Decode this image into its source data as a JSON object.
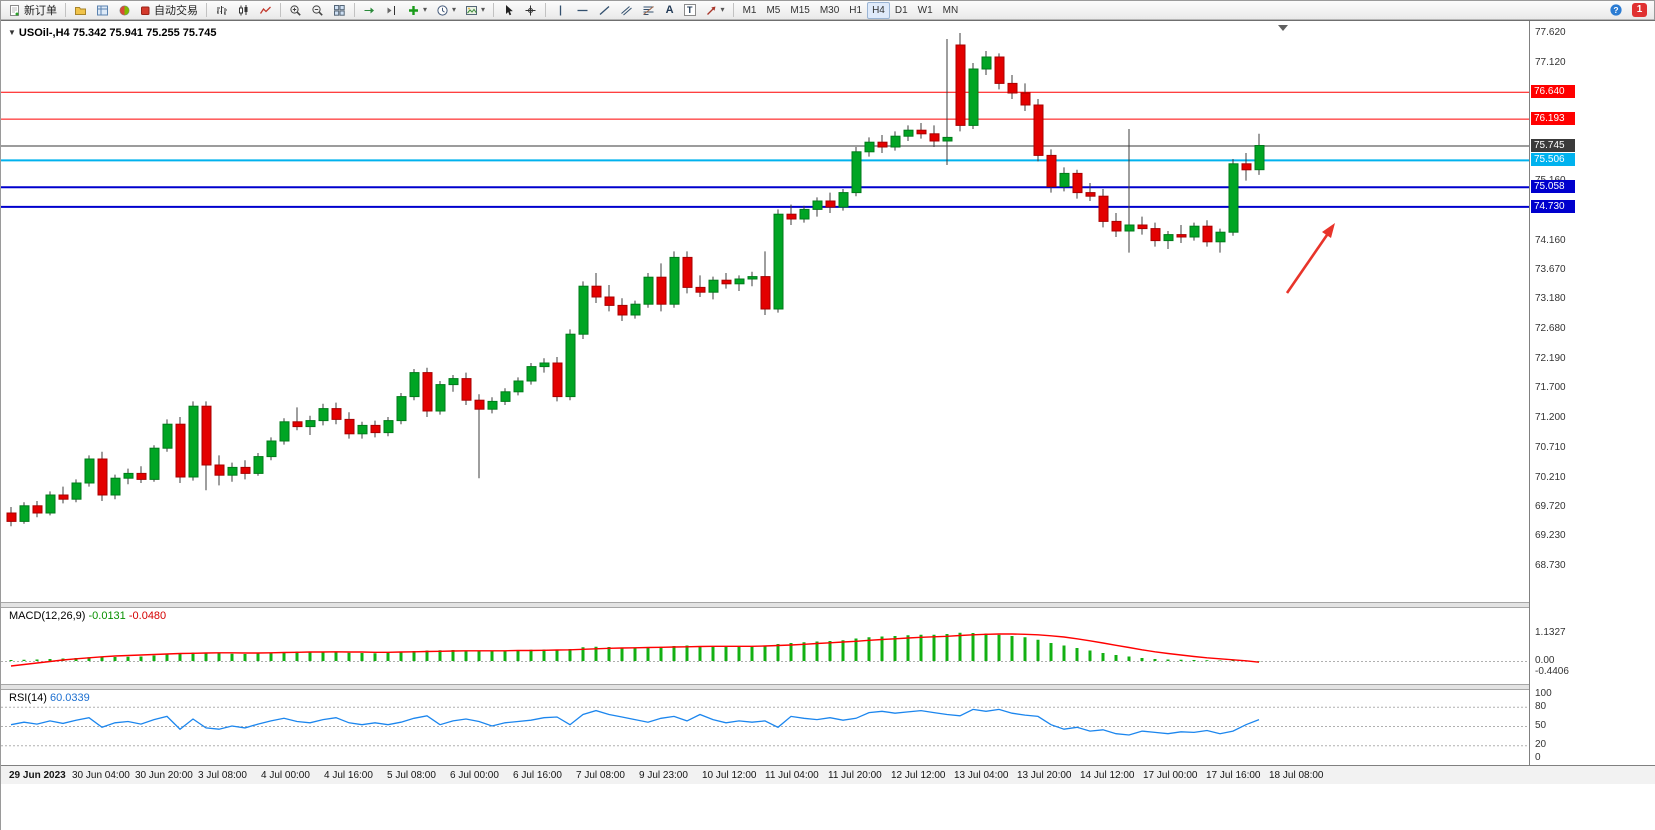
{
  "toolbar": {
    "new_order_label": "新订单",
    "auto_trading_label": "自动交易",
    "timeframes": [
      "M1",
      "M5",
      "M15",
      "M30",
      "H1",
      "H4",
      "D1",
      "W1",
      "MN"
    ],
    "active_timeframe": "H4",
    "text_tool_label": "A",
    "label_tool_label": "T",
    "notification_count": "1",
    "icons": [
      "new-order-icon",
      "profiles-icon",
      "market-watch-icon",
      "data-window-icon",
      "auto-trading-icon",
      "bar-chart-icon",
      "candlestick-chart-icon",
      "line-chart-icon",
      "zoom-in-icon",
      "zoom-out-icon",
      "tile-windows-icon",
      "auto-scroll-icon",
      "chart-shift-icon",
      "indicators-icon",
      "periods-icon",
      "templates-icon",
      "cursor-icon",
      "crosshair-icon",
      "vertical-line-icon",
      "horizontal-line-icon",
      "trendline-icon",
      "equidistant-channel-icon",
      "fibonacci-icon",
      "text-icon",
      "text-label-icon",
      "arrows-icon",
      "help-icon",
      "notification-badge"
    ]
  },
  "chart": {
    "title": "USOil-,H4 75.342 75.941 75.255 75.745",
    "symbol": "USOil-",
    "timeframe": "H4",
    "price_axis_labels": [
      "77.620",
      "77.120",
      "76.140",
      "75.160",
      "74.660",
      "74.160",
      "73.670",
      "73.180",
      "72.680",
      "72.190",
      "71.700",
      "71.200",
      "70.710",
      "70.210",
      "69.720",
      "69.230",
      "68.730"
    ],
    "hlines": [
      {
        "price": 76.64,
        "label": "76.640",
        "color": "#FF0000",
        "width": 1
      },
      {
        "price": 76.193,
        "label": "76.193",
        "color": "#FF0000",
        "width": 1
      },
      {
        "price": 75.745,
        "label": "75.745",
        "color": "#3A3A3A",
        "width": 1
      },
      {
        "price": 75.506,
        "label": "75.506",
        "color": "#00B2EE",
        "width": 2
      },
      {
        "price": 75.058,
        "label": "75.058",
        "color": "#0000CD",
        "width": 2
      },
      {
        "price": 74.73,
        "label": "74.730",
        "color": "#0000CD",
        "width": 2
      }
    ],
    "time_axis": [
      "29 Jun 2023",
      "30 Jun 04:00",
      "30 Jun 20:00",
      "3 Jul 08:00",
      "4 Jul 00:00",
      "4 Jul 16:00",
      "5 Jul 08:00",
      "6 Jul 00:00",
      "6 Jul 16:00",
      "7 Jul 08:00",
      "9 Jul 23:00",
      "10 Jul 12:00",
      "11 Jul 04:00",
      "11 Jul 20:00",
      "12 Jul 12:00",
      "13 Jul 04:00",
      "13 Jul 20:00",
      "14 Jul 12:00",
      "17 Jul 00:00",
      "17 Jul 16:00",
      "18 Jul 08:00"
    ]
  },
  "macd_panel": {
    "name": "MACD(12,26,9)",
    "value1": "-0.0131",
    "value2": "-0.0480",
    "axis": [
      "1.1327",
      "0.00",
      "-0.4406"
    ]
  },
  "rsi_panel": {
    "name": "RSI(14)",
    "value": "60.0339",
    "axis": [
      "100",
      "80",
      "50",
      "20",
      "0"
    ],
    "levels": [
      80,
      50,
      20
    ]
  },
  "colors": {
    "candle_up": "#00A524",
    "candle_up_border": "#007a1a",
    "candle_down": "#E30000",
    "candle_down_border": "#a80000",
    "wick": "#3c3c3c",
    "macd_histogram": "#13B013",
    "macd_signal": "#FF0000",
    "rsi_line": "#1C86EE",
    "arrow": "#E8342A",
    "shift_marker": "#606060",
    "grid_dotted": "#b0b0b0"
  },
  "chart_data": [
    {
      "type": "candlestick",
      "symbol": "USOil",
      "timeframe": "H4",
      "y_range": [
        68.73,
        77.77
      ],
      "hline_values": [
        76.64,
        76.193,
        75.745,
        75.506,
        75.058,
        74.73
      ],
      "x_labels": [
        "29 Jun 2023",
        "30 Jun 04:00",
        "30 Jun 20:00",
        "3 Jul 08:00",
        "4 Jul 00:00",
        "4 Jul 16:00",
        "5 Jul 08:00",
        "6 Jul 00:00",
        "6 Jul 16:00",
        "7 Jul 08:00",
        "9 Jul 23:00",
        "10 Jul 12:00",
        "11 Jul 04:00",
        "11 Jul 20:00",
        "12 Jul 12:00",
        "13 Jul 04:00",
        "13 Jul 20:00",
        "14 Jul 12:00",
        "17 Jul 00:00",
        "17 Jul 16:00",
        "18 Jul 08:00"
      ],
      "ohlc": [
        [
          69.62,
          69.72,
          69.4,
          69.48
        ],
        [
          69.48,
          69.8,
          69.44,
          69.74
        ],
        [
          69.74,
          69.82,
          69.55,
          69.62
        ],
        [
          69.62,
          69.98,
          69.58,
          69.92
        ],
        [
          69.92,
          70.06,
          69.78,
          69.85
        ],
        [
          69.85,
          70.18,
          69.8,
          70.12
        ],
        [
          70.12,
          70.58,
          70.06,
          70.52
        ],
        [
          70.52,
          70.64,
          69.82,
          69.92
        ],
        [
          69.92,
          70.26,
          69.85,
          70.2
        ],
        [
          70.2,
          70.36,
          70.1,
          70.28
        ],
        [
          70.28,
          70.4,
          70.12,
          70.18
        ],
        [
          70.18,
          70.75,
          70.14,
          70.7
        ],
        [
          70.7,
          71.18,
          70.64,
          71.1
        ],
        [
          71.1,
          71.22,
          70.12,
          70.22
        ],
        [
          70.22,
          71.48,
          70.16,
          71.4
        ],
        [
          71.4,
          71.48,
          70.0,
          70.42
        ],
        [
          70.42,
          70.58,
          70.08,
          70.25
        ],
        [
          70.25,
          70.46,
          70.14,
          70.38
        ],
        [
          70.38,
          70.5,
          70.18,
          70.28
        ],
        [
          70.28,
          70.62,
          70.24,
          70.56
        ],
        [
          70.56,
          70.88,
          70.5,
          70.82
        ],
        [
          70.82,
          71.2,
          70.76,
          71.14
        ],
        [
          71.14,
          71.38,
          71.0,
          71.06
        ],
        [
          71.06,
          71.24,
          70.92,
          71.16
        ],
        [
          71.16,
          71.44,
          71.08,
          71.36
        ],
        [
          71.36,
          71.46,
          71.1,
          71.18
        ],
        [
          71.18,
          71.3,
          70.86,
          70.94
        ],
        [
          70.94,
          71.14,
          70.86,
          71.08
        ],
        [
          71.08,
          71.16,
          70.88,
          70.96
        ],
        [
          70.96,
          71.22,
          70.9,
          71.16
        ],
        [
          71.16,
          71.62,
          71.1,
          71.56
        ],
        [
          71.56,
          72.02,
          71.5,
          71.96
        ],
        [
          71.96,
          72.04,
          71.22,
          71.32
        ],
        [
          71.32,
          71.82,
          71.26,
          71.76
        ],
        [
          71.76,
          71.92,
          71.64,
          71.86
        ],
        [
          71.86,
          71.96,
          71.42,
          71.5
        ],
        [
          71.5,
          71.6,
          70.2,
          71.35
        ],
        [
          71.35,
          71.55,
          71.28,
          71.48
        ],
        [
          71.48,
          71.7,
          71.42,
          71.64
        ],
        [
          71.64,
          71.88,
          71.58,
          71.82
        ],
        [
          71.82,
          72.12,
          71.76,
          72.06
        ],
        [
          72.06,
          72.2,
          71.96,
          72.12
        ],
        [
          72.12,
          72.22,
          71.48,
          71.56
        ],
        [
          71.56,
          72.68,
          71.5,
          72.6
        ],
        [
          72.6,
          73.48,
          72.52,
          73.4
        ],
        [
          73.4,
          73.62,
          73.12,
          73.22
        ],
        [
          73.22,
          73.42,
          72.98,
          73.08
        ],
        [
          73.08,
          73.2,
          72.82,
          72.92
        ],
        [
          72.92,
          73.16,
          72.86,
          73.1
        ],
        [
          73.1,
          73.62,
          73.04,
          73.55
        ],
        [
          73.55,
          73.78,
          72.98,
          73.1
        ],
        [
          73.1,
          73.98,
          73.04,
          73.88
        ],
        [
          73.88,
          73.98,
          73.28,
          73.38
        ],
        [
          73.38,
          73.58,
          73.22,
          73.3
        ],
        [
          73.3,
          73.56,
          73.18,
          73.5
        ],
        [
          73.5,
          73.62,
          73.36,
          73.44
        ],
        [
          73.44,
          73.58,
          73.32,
          73.52
        ],
        [
          73.52,
          73.64,
          73.4,
          73.56
        ],
        [
          73.56,
          73.98,
          72.92,
          73.02
        ],
        [
          73.02,
          74.68,
          72.96,
          74.6
        ],
        [
          74.6,
          74.76,
          74.42,
          74.52
        ],
        [
          74.52,
          74.74,
          74.46,
          74.68
        ],
        [
          74.68,
          74.88,
          74.56,
          74.82
        ],
        [
          74.82,
          74.96,
          74.62,
          74.72
        ],
        [
          74.72,
          75.02,
          74.66,
          74.96
        ],
        [
          74.96,
          75.72,
          74.9,
          75.64
        ],
        [
          75.64,
          75.88,
          75.56,
          75.8
        ],
        [
          75.8,
          75.92,
          75.62,
          75.72
        ],
        [
          75.72,
          75.98,
          75.66,
          75.9
        ],
        [
          75.9,
          76.08,
          75.82,
          76.0
        ],
        [
          76.0,
          76.12,
          75.86,
          75.94
        ],
        [
          75.94,
          76.08,
          75.72,
          75.82
        ],
        [
          75.82,
          77.52,
          75.42,
          75.88
        ],
        [
          77.42,
          77.62,
          75.98,
          76.08
        ],
        [
          76.08,
          77.12,
          76.02,
          77.02
        ],
        [
          77.02,
          77.32,
          76.92,
          77.22
        ],
        [
          77.22,
          77.28,
          76.68,
          76.78
        ],
        [
          76.78,
          76.92,
          76.52,
          76.62
        ],
        [
          76.62,
          76.78,
          76.32,
          76.42
        ],
        [
          76.42,
          76.52,
          75.48,
          75.58
        ],
        [
          75.58,
          75.68,
          74.96,
          75.06
        ],
        [
          75.06,
          75.38,
          74.98,
          75.28
        ],
        [
          75.28,
          75.34,
          74.86,
          74.96
        ],
        [
          74.96,
          75.12,
          74.82,
          74.9
        ],
        [
          74.9,
          75.02,
          74.38,
          74.48
        ],
        [
          74.48,
          74.62,
          74.22,
          74.32
        ],
        [
          74.32,
          76.02,
          73.96,
          74.42
        ],
        [
          74.42,
          74.56,
          74.26,
          74.36
        ],
        [
          74.36,
          74.46,
          74.06,
          74.16
        ],
        [
          74.16,
          74.32,
          74.02,
          74.26
        ],
        [
          74.26,
          74.42,
          74.12,
          74.22
        ],
        [
          74.22,
          74.46,
          74.16,
          74.4
        ],
        [
          74.4,
          74.5,
          74.06,
          74.14
        ],
        [
          74.14,
          74.36,
          73.96,
          74.3
        ],
        [
          74.3,
          75.52,
          74.24,
          75.44
        ],
        [
          75.44,
          75.62,
          75.16,
          75.34
        ],
        [
          75.342,
          75.941,
          75.255,
          75.745
        ]
      ]
    },
    {
      "type": "bar",
      "name": "MACD(12,26,9)",
      "current_values": [
        -0.0131,
        -0.048
      ],
      "y_ticks": [
        1.1327,
        0.0,
        -0.4406
      ],
      "histogram": [
        0.04,
        0.05,
        0.06,
        0.08,
        0.1,
        0.12,
        0.15,
        0.18,
        0.16,
        0.17,
        0.18,
        0.22,
        0.28,
        0.3,
        0.34,
        0.32,
        0.3,
        0.29,
        0.28,
        0.3,
        0.33,
        0.36,
        0.38,
        0.37,
        0.38,
        0.36,
        0.33,
        0.32,
        0.31,
        0.32,
        0.36,
        0.4,
        0.42,
        0.43,
        0.44,
        0.42,
        0.4,
        0.39,
        0.4,
        0.42,
        0.45,
        0.46,
        0.44,
        0.48,
        0.55,
        0.57,
        0.56,
        0.54,
        0.53,
        0.56,
        0.57,
        0.6,
        0.62,
        0.6,
        0.59,
        0.58,
        0.58,
        0.59,
        0.6,
        0.68,
        0.72,
        0.75,
        0.78,
        0.8,
        0.83,
        0.9,
        0.95,
        0.98,
        1.0,
        1.03,
        1.05,
        1.05,
        1.08,
        1.13,
        1.12,
        1.1,
        1.05,
        1.0,
        0.95,
        0.85,
        0.72,
        0.62,
        0.52,
        0.42,
        0.32,
        0.24,
        0.18,
        0.12,
        0.08,
        0.06,
        0.05,
        0.04,
        0.03,
        0.02,
        0.03,
        0.02,
        -0.013
      ],
      "signal": [
        -0.2,
        -0.14,
        -0.08,
        -0.02,
        0.04,
        0.09,
        0.13,
        0.17,
        0.2,
        0.22,
        0.24,
        0.26,
        0.28,
        0.3,
        0.31,
        0.32,
        0.33,
        0.33,
        0.32,
        0.32,
        0.33,
        0.34,
        0.35,
        0.36,
        0.36,
        0.37,
        0.36,
        0.36,
        0.35,
        0.35,
        0.36,
        0.37,
        0.38,
        0.39,
        0.4,
        0.41,
        0.41,
        0.41,
        0.41,
        0.42,
        0.42,
        0.43,
        0.44,
        0.45,
        0.47,
        0.49,
        0.51,
        0.52,
        0.53,
        0.54,
        0.55,
        0.56,
        0.57,
        0.58,
        0.59,
        0.59,
        0.59,
        0.59,
        0.6,
        0.62,
        0.64,
        0.67,
        0.7,
        0.73,
        0.76,
        0.79,
        0.83,
        0.86,
        0.89,
        0.92,
        0.95,
        0.97,
        0.99,
        1.02,
        1.05,
        1.07,
        1.08,
        1.08,
        1.07,
        1.05,
        1.01,
        0.96,
        0.89,
        0.81,
        0.72,
        0.63,
        0.54,
        0.45,
        0.37,
        0.3,
        0.24,
        0.18,
        0.13,
        0.09,
        0.05,
        0.01,
        -0.048
      ]
    },
    {
      "type": "line",
      "name": "RSI(14)",
      "current_value": 60.0339,
      "y_range": [
        0,
        100
      ],
      "levels": [
        80,
        50,
        20
      ],
      "values": [
        52,
        56,
        53,
        58,
        54,
        59,
        63,
        48,
        55,
        57,
        53,
        60,
        65,
        45,
        61,
        47,
        45,
        50,
        47,
        53,
        58,
        62,
        57,
        55,
        60,
        63,
        55,
        52,
        55,
        52,
        56,
        62,
        66,
        52,
        58,
        61,
        57,
        50,
        55,
        57,
        59,
        63,
        64,
        52,
        68,
        74,
        68,
        64,
        60,
        56,
        62,
        65,
        58,
        68,
        60,
        55,
        58,
        56,
        58,
        48,
        65,
        62,
        60,
        63,
        59,
        62,
        71,
        73,
        70,
        72,
        74,
        71,
        68,
        66,
        76,
        73,
        76,
        70,
        67,
        65,
        52,
        45,
        48,
        42,
        44,
        38,
        36,
        42,
        40,
        38,
        41,
        40,
        43,
        38,
        42,
        52,
        60
      ]
    }
  ]
}
